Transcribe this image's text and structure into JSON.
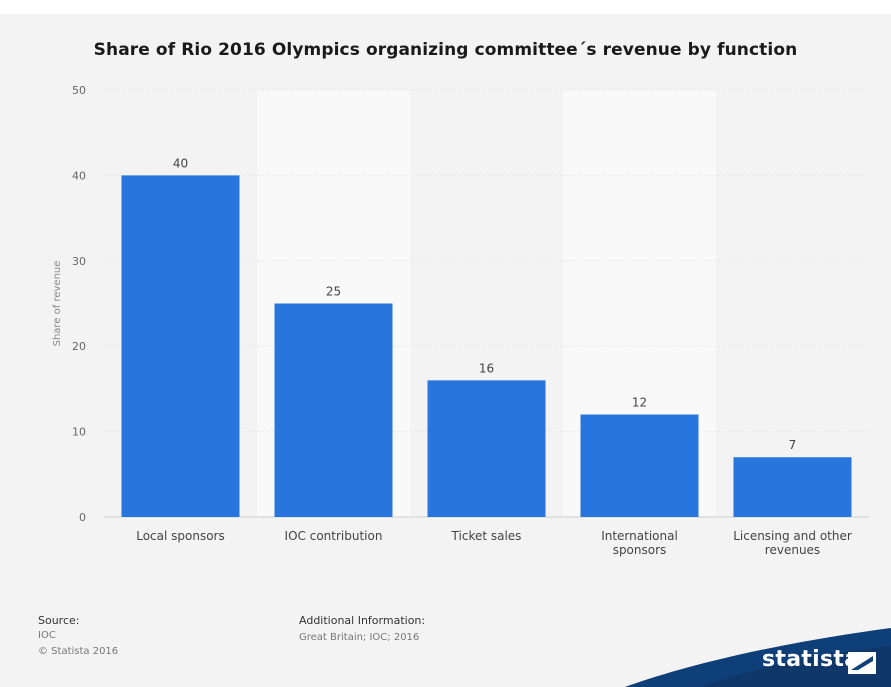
{
  "title": "Share of Rio 2016 Olympics organizing committee´s revenue by function",
  "source": {
    "label": "Source:",
    "line1": "IOC",
    "line2": "© Statista 2016"
  },
  "additional": {
    "label": "Additional Information:",
    "line1": "Great Britain; IOC; 2016"
  },
  "brand": {
    "name": "statista"
  },
  "colors": {
    "bar": "#2876dd",
    "background": "#f3f3f3",
    "stripe": "#f9f9f9",
    "brand_dark": "#0e3f78"
  },
  "chart_data": {
    "type": "bar",
    "title": "Share of Rio 2016 Olympics organizing committee´s revenue by function",
    "ylabel": "Share of revenue",
    "xlabel": "",
    "ylim": [
      0,
      50
    ],
    "yticks": [
      0,
      10,
      20,
      30,
      40,
      50
    ],
    "grid": true,
    "categories": [
      [
        "Local sponsors"
      ],
      [
        "IOC contribution"
      ],
      [
        "Ticket sales"
      ],
      [
        "International",
        "sponsors"
      ],
      [
        "Licensing and other",
        "revenues"
      ]
    ],
    "values": [
      40,
      25,
      16,
      12,
      7
    ]
  }
}
